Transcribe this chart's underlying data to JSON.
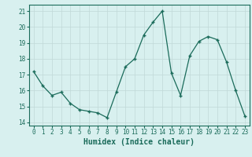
{
  "x": [
    0,
    1,
    2,
    3,
    4,
    5,
    6,
    7,
    8,
    9,
    10,
    11,
    12,
    13,
    14,
    15,
    16,
    17,
    18,
    19,
    20,
    21,
    22,
    23
  ],
  "y": [
    17.2,
    16.3,
    15.7,
    15.9,
    15.2,
    14.8,
    14.7,
    14.6,
    14.3,
    15.9,
    17.5,
    18.0,
    19.5,
    20.3,
    21.0,
    17.1,
    15.7,
    18.2,
    19.1,
    19.4,
    19.2,
    17.8,
    16.0,
    14.4
  ],
  "xlabel": "Humidex (Indice chaleur)",
  "ylabel_ticks": [
    14,
    15,
    16,
    17,
    18,
    19,
    20,
    21
  ],
  "ylim": [
    13.8,
    21.4
  ],
  "xlim": [
    -0.5,
    23.5
  ],
  "line_color": "#1a6b5a",
  "marker_color": "#1a6b5a",
  "bg_color": "#d8f0ef",
  "grid_color": "#c0d8d8",
  "spine_color": "#888888",
  "tick_color": "#1a6b5a",
  "xlabel_fontsize": 7.0,
  "tick_fontsize": 5.5
}
